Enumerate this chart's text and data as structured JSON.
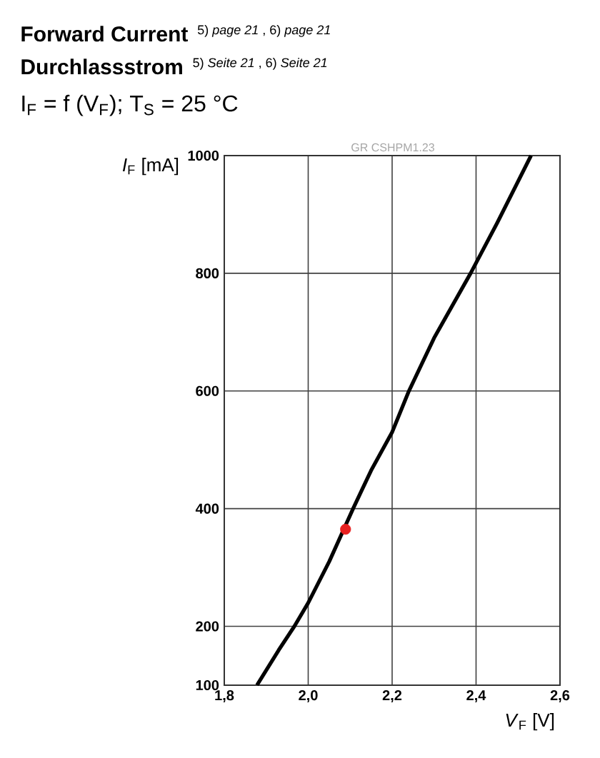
{
  "chart_data": {
    "type": "line",
    "title": "Forward Current",
    "subtitle": "Durchlassstrom",
    "annotations": [
      "5) *page 21* , 6) *page 21*",
      "5) *Seite 21* , 6) *Seite 21*",
      "I$_{F}$ = f (V$_{F}$); T$_{S}$ = 25 °C",
      "GR CSHPM1.23"
    ],
    "xlabel": "*V*$_{F}$ [V]",
    "ylabel": "*I*$_{F}$ [mA]",
    "xlim": [
      1.8,
      2.6
    ],
    "ylim": [
      100,
      1000
    ],
    "xticks": [
      {
        "value": 1.8,
        "label": "1,8"
      },
      {
        "value": 2.0,
        "label": "2,0"
      },
      {
        "value": 2.2,
        "label": "2,2"
      },
      {
        "value": 2.4,
        "label": "2,4"
      },
      {
        "value": 2.6,
        "label": "2,6"
      }
    ],
    "yticks": [
      100,
      200,
      400,
      600,
      800,
      1000
    ],
    "grid": true,
    "marker": "none",
    "line_style": "solid",
    "series": [
      {
        "type": "line",
        "color": "#000000",
        "x": [
          1.878,
          1.93,
          1.967,
          2.0,
          2.05,
          2.107,
          2.15,
          2.2,
          2.24,
          2.3,
          2.387,
          2.45,
          2.531
        ],
        "values": [
          100,
          160,
          200,
          240,
          310,
          400,
          465,
          530,
          600,
          690,
          800,
          885,
          1000
        ]
      },
      {
        "type": "scatter",
        "color": "#e82020",
        "marker": "circle",
        "x": [
          2.089
        ],
        "values": [
          365
        ]
      }
    ]
  }
}
